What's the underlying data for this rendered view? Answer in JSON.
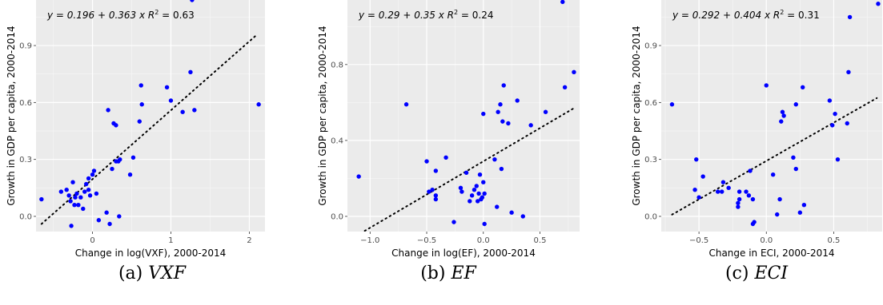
{
  "chart_data": [
    {
      "type": "scatter",
      "caption_letter": "(a)",
      "caption_name": "VXF",
      "equation": "y = 0.196 + 0.363 x",
      "r2_label": "R",
      "r2_value": "= 0.63",
      "xlabel": "Change in log(VXF), 2000-2014",
      "ylabel": "Growth in GDP per capita, 2000-2014",
      "xlim": [
        -0.72,
        2.2
      ],
      "ylim": [
        -0.08,
        1.14
      ],
      "xticks": [
        0,
        1,
        2
      ],
      "xtick_labels": [
        "0",
        "1",
        "2"
      ],
      "yticks": [
        0.0,
        0.3,
        0.6,
        0.9
      ],
      "ytick_labels": [
        "0.0",
        "0.3",
        "0.6",
        "0.9"
      ],
      "fit": {
        "intercept": 0.196,
        "slope": 0.363,
        "x_range": [
          -0.65,
          2.1
        ]
      },
      "points": [
        [
          -0.65,
          0.09
        ],
        [
          -0.4,
          0.13
        ],
        [
          -0.33,
          0.14
        ],
        [
          -0.3,
          0.11
        ],
        [
          -0.28,
          0.08
        ],
        [
          -0.27,
          -0.05
        ],
        [
          -0.25,
          0.18
        ],
        [
          -0.23,
          0.06
        ],
        [
          -0.22,
          0.1
        ],
        [
          -0.2,
          0.12
        ],
        [
          -0.18,
          0.06
        ],
        [
          -0.15,
          0.1
        ],
        [
          -0.12,
          0.04
        ],
        [
          -0.1,
          0.13
        ],
        [
          -0.08,
          0.17
        ],
        [
          -0.05,
          0.2
        ],
        [
          -0.05,
          0.14
        ],
        [
          -0.03,
          0.11
        ],
        [
          0.0,
          0.22
        ],
        [
          0.02,
          0.24
        ],
        [
          0.05,
          0.12
        ],
        [
          0.08,
          -0.02
        ],
        [
          0.18,
          0.02
        ],
        [
          0.2,
          0.56
        ],
        [
          0.22,
          -0.04
        ],
        [
          0.25,
          0.25
        ],
        [
          0.27,
          0.49
        ],
        [
          0.3,
          0.48
        ],
        [
          0.3,
          0.29
        ],
        [
          0.33,
          0.29
        ],
        [
          0.34,
          0.0
        ],
        [
          0.35,
          0.3
        ],
        [
          0.48,
          0.22
        ],
        [
          0.52,
          0.31
        ],
        [
          0.6,
          0.5
        ],
        [
          0.62,
          0.69
        ],
        [
          0.63,
          0.59
        ],
        [
          0.95,
          0.68
        ],
        [
          1.0,
          0.61
        ],
        [
          1.15,
          0.55
        ],
        [
          1.25,
          0.76
        ],
        [
          1.27,
          1.14
        ],
        [
          1.3,
          0.56
        ],
        [
          2.12,
          0.59
        ]
      ]
    },
    {
      "type": "scatter",
      "caption_letter": "(b)",
      "caption_name": "EF",
      "equation": "y = 0.29 + 0.35 x",
      "r2_label": "R",
      "r2_value": "= 0.24",
      "xlabel": "Change in log(EF), 2000-2014",
      "ylabel": "Growth in GDP per capita, 2000-2014",
      "xlim": [
        -1.2,
        0.85
      ],
      "ylim": [
        -0.08,
        1.14
      ],
      "xticks": [
        -1.0,
        -0.5,
        0.0,
        0.5
      ],
      "xtick_labels": [
        "-1.0",
        "-0.5",
        "0.0",
        "0.5"
      ],
      "yticks": [
        0.0,
        0.4,
        0.8
      ],
      "ytick_labels": [
        "0.0",
        "0.4",
        "0.8"
      ],
      "fit": {
        "intercept": 0.29,
        "slope": 0.35,
        "x_range": [
          -1.12,
          0.8
        ]
      },
      "points": [
        [
          -1.1,
          0.21
        ],
        [
          -0.68,
          0.59
        ],
        [
          -0.5,
          0.29
        ],
        [
          -0.48,
          0.13
        ],
        [
          -0.45,
          0.14
        ],
        [
          -0.42,
          0.24
        ],
        [
          -0.42,
          0.11
        ],
        [
          -0.42,
          0.09
        ],
        [
          -0.33,
          0.31
        ],
        [
          -0.26,
          -0.03
        ],
        [
          -0.2,
          0.15
        ],
        [
          -0.19,
          0.13
        ],
        [
          -0.15,
          0.23
        ],
        [
          -0.12,
          0.08
        ],
        [
          -0.1,
          0.11
        ],
        [
          -0.08,
          0.14
        ],
        [
          -0.06,
          0.16
        ],
        [
          -0.05,
          0.08
        ],
        [
          -0.04,
          0.12
        ],
        [
          -0.03,
          0.22
        ],
        [
          -0.02,
          0.09
        ],
        [
          -0.01,
          0.1
        ],
        [
          0.0,
          0.18
        ],
        [
          0.01,
          0.12
        ],
        [
          0.01,
          -0.04
        ],
        [
          0.0,
          0.54
        ],
        [
          0.1,
          0.3
        ],
        [
          0.12,
          0.05
        ],
        [
          0.13,
          0.55
        ],
        [
          0.15,
          0.59
        ],
        [
          0.16,
          0.25
        ],
        [
          0.17,
          0.5
        ],
        [
          0.18,
          0.69
        ],
        [
          0.22,
          0.49
        ],
        [
          0.25,
          0.02
        ],
        [
          0.3,
          0.61
        ],
        [
          0.35,
          0.0
        ],
        [
          0.42,
          0.48
        ],
        [
          0.55,
          0.55
        ],
        [
          0.7,
          1.13
        ],
        [
          0.72,
          0.68
        ],
        [
          0.8,
          0.76
        ]
      ]
    },
    {
      "type": "scatter",
      "caption_letter": "(c)",
      "caption_name": "ECI",
      "equation": "y = 0.292 + 0.404 x",
      "r2_label": "R",
      "r2_value": "= 0.31",
      "xlabel": "Change in ECI, 2000-2014",
      "ylabel": "Growth in GDP per capita, 2000-2014",
      "xlim": [
        -0.78,
        0.86
      ],
      "ylim": [
        -0.08,
        1.14
      ],
      "xticks": [
        -0.5,
        0.0,
        0.5
      ],
      "xtick_labels": [
        "-0.5",
        "0.0",
        "0.5"
      ],
      "yticks": [
        0.0,
        0.3,
        0.6,
        0.9
      ],
      "ytick_labels": [
        "0.0",
        "0.3",
        "0.6",
        "0.9"
      ],
      "fit": {
        "intercept": 0.292,
        "slope": 0.404,
        "x_range": [
          -0.7,
          0.82
        ]
      },
      "points": [
        [
          -0.7,
          0.59
        ],
        [
          -0.53,
          0.14
        ],
        [
          -0.52,
          0.3
        ],
        [
          -0.5,
          0.1
        ],
        [
          -0.47,
          0.21
        ],
        [
          -0.36,
          0.13
        ],
        [
          -0.33,
          0.13
        ],
        [
          -0.32,
          0.18
        ],
        [
          -0.28,
          0.15
        ],
        [
          -0.21,
          0.07
        ],
        [
          -0.21,
          0.05
        ],
        [
          -0.2,
          0.09
        ],
        [
          -0.2,
          0.13
        ],
        [
          -0.15,
          0.13
        ],
        [
          -0.13,
          0.11
        ],
        [
          -0.12,
          0.24
        ],
        [
          -0.1,
          -0.04
        ],
        [
          -0.1,
          0.09
        ],
        [
          -0.09,
          -0.03
        ],
        [
          0.0,
          0.69
        ],
        [
          0.05,
          0.22
        ],
        [
          0.08,
          0.01
        ],
        [
          0.1,
          0.09
        ],
        [
          0.11,
          0.5
        ],
        [
          0.12,
          0.55
        ],
        [
          0.13,
          0.53
        ],
        [
          0.2,
          0.31
        ],
        [
          0.22,
          0.59
        ],
        [
          0.22,
          0.25
        ],
        [
          0.25,
          0.02
        ],
        [
          0.27,
          0.68
        ],
        [
          0.28,
          0.06
        ],
        [
          0.47,
          0.61
        ],
        [
          0.49,
          0.48
        ],
        [
          0.51,
          0.54
        ],
        [
          0.53,
          0.3
        ],
        [
          0.6,
          0.49
        ],
        [
          0.61,
          0.76
        ],
        [
          0.62,
          1.05
        ],
        [
          0.83,
          1.12
        ]
      ]
    }
  ]
}
